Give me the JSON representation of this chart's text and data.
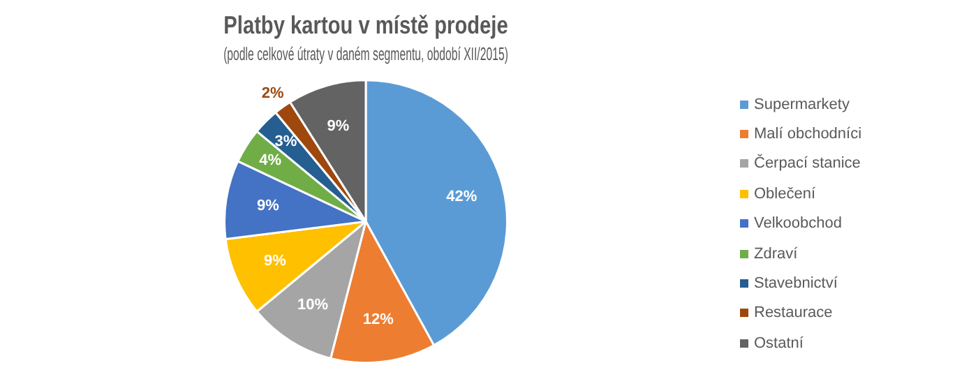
{
  "chart_data": {
    "type": "pie",
    "title": "Platby kartou v místě prodeje",
    "subtitle": "(podle celkové útraty v daném segmentu, období XII/2015)",
    "categories": [
      "Supermarkety",
      "Malí obchodníci",
      "Čerpací stanice",
      "Oblečení",
      "Velkoobchod",
      "Zdraví",
      "Stavebnictví",
      "Restaurace",
      "Ostatní"
    ],
    "values": [
      42,
      12,
      10,
      9,
      9,
      4,
      3,
      2,
      9
    ],
    "value_labels": [
      "42%",
      "12%",
      "10%",
      "9%",
      "9%",
      "4%",
      "3%",
      "2%",
      "9%"
    ],
    "colors": [
      "#5b9bd5",
      "#ed7d31",
      "#a5a5a5",
      "#ffc000",
      "#4472c4",
      "#70ad47",
      "#255e91",
      "#9e480e",
      "#636363"
    ],
    "legend": "right"
  }
}
